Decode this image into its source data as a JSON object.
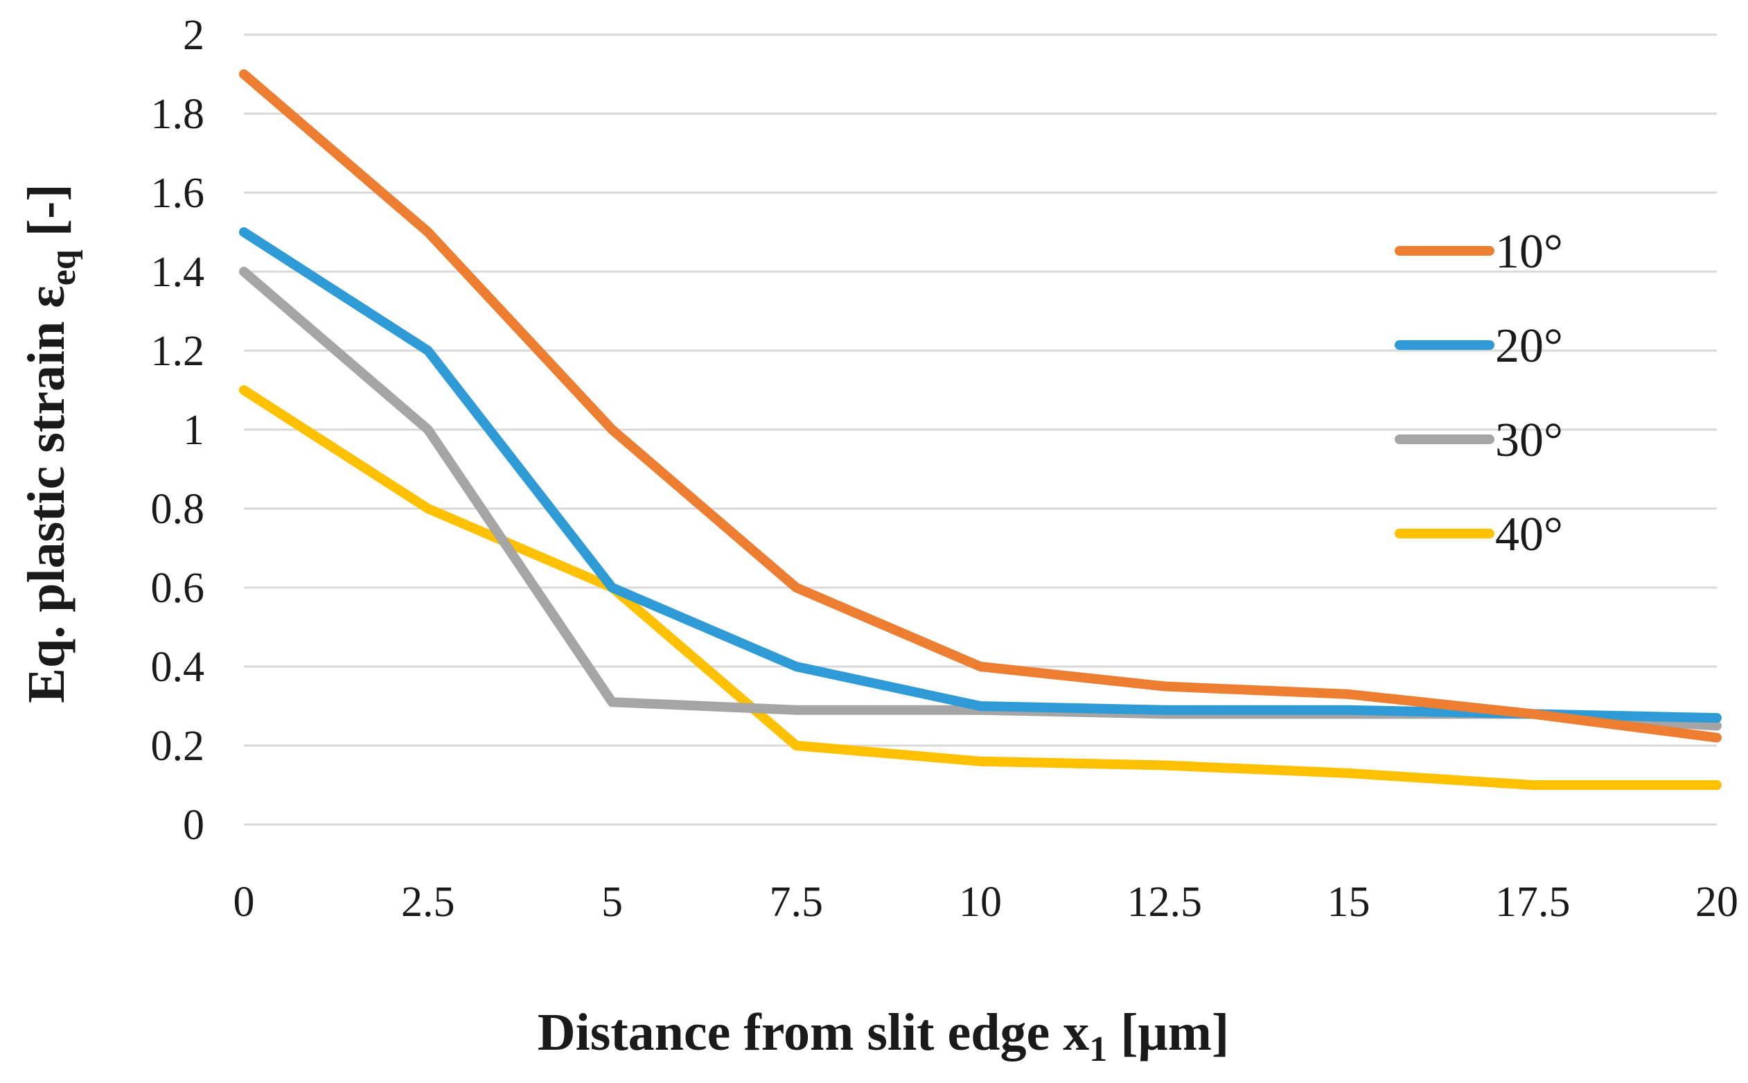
{
  "chart_data": {
    "type": "line",
    "title": "",
    "xlabel": "Distance from slit edge x",
    "xlabel_sub": "1",
    "xlabel_unit": " [μm]",
    "ylabel": "Eq. plastic strain ε",
    "ylabel_sub": "eq",
    "ylabel_unit": " [-]",
    "x": [
      0,
      2.5,
      5,
      7.5,
      10,
      12.5,
      15,
      17.5,
      20
    ],
    "x_tick_labels": [
      "0",
      "2.5",
      "5",
      "7.5",
      "10",
      "12.5",
      "15",
      "17.5",
      "20"
    ],
    "xlim": [
      0,
      20
    ],
    "ylim": [
      0,
      2
    ],
    "y_ticks": [
      0,
      0.2,
      0.4,
      0.6,
      0.8,
      1,
      1.2,
      1.4,
      1.6,
      1.8,
      2
    ],
    "y_tick_labels": [
      "0",
      "0.2",
      "0.4",
      "0.6",
      "0.8",
      "1",
      "1.2",
      "1.4",
      "1.6",
      "1.8",
      "2"
    ],
    "grid": true,
    "legend_position": "right",
    "series": [
      {
        "name": "10°",
        "color": "#ED7D31",
        "values": [
          1.9,
          1.5,
          1.0,
          0.6,
          0.4,
          0.35,
          0.33,
          0.28,
          0.22
        ]
      },
      {
        "name": "20°",
        "color": "#2E9BD6",
        "values": [
          1.5,
          1.2,
          0.6,
          0.4,
          0.3,
          0.29,
          0.29,
          0.28,
          0.27
        ]
      },
      {
        "name": "30°",
        "color": "#A5A5A5",
        "values": [
          1.4,
          1.0,
          0.31,
          0.29,
          0.29,
          0.28,
          0.28,
          0.28,
          0.25
        ]
      },
      {
        "name": "40°",
        "color": "#FFC000",
        "values": [
          1.1,
          0.8,
          0.6,
          0.2,
          0.16,
          0.15,
          0.13,
          0.1,
          0.1
        ]
      }
    ]
  }
}
